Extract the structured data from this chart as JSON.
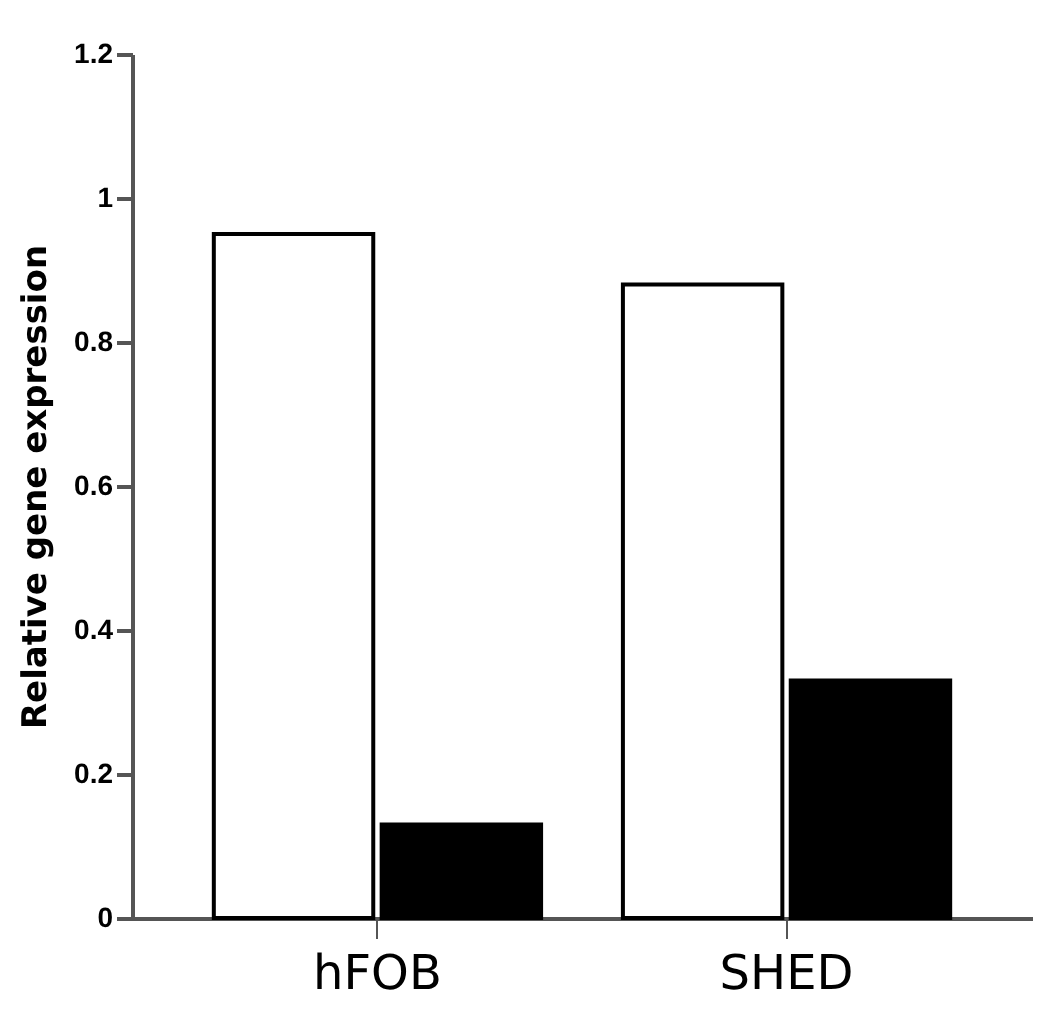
{
  "chart_data": {
    "type": "bar",
    "ylabel": "Relative gene expression",
    "categories": [
      "hFOB",
      "SHED"
    ],
    "series": [
      {
        "color": "#ffffff",
        "values": [
          0.95,
          0.88
        ]
      },
      {
        "color": "#000000",
        "values": [
          0.13,
          0.33
        ]
      }
    ],
    "ylim": [
      0,
      1.2
    ],
    "yticks": [
      0,
      0.2,
      0.4,
      0.6,
      0.8,
      1,
      1.2
    ],
    "grid": false,
    "legend": false
  }
}
